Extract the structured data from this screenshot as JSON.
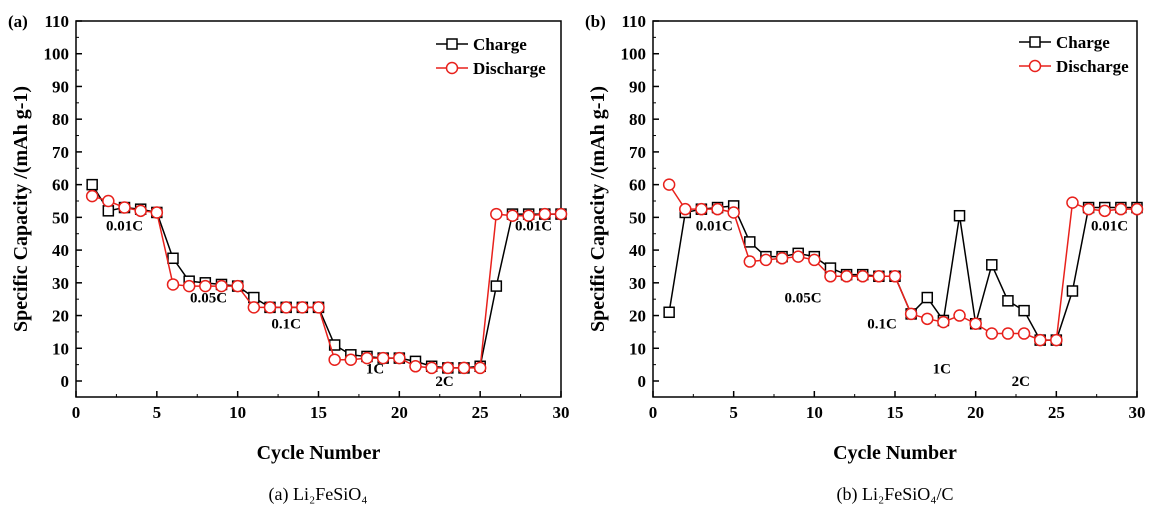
{
  "chart_data": [
    {
      "type": "line",
      "panel_label": "(a)",
      "caption": "(a) Li₂FeSiO₄",
      "xlabel": "Cycle Number",
      "ylabel": "Specific Capacity /(mAh g-1)",
      "xlim": [
        0,
        30
      ],
      "ylim": [
        0,
        110
      ],
      "xticks": [
        0,
        5,
        10,
        15,
        20,
        25,
        30
      ],
      "yticks": [
        0,
        10,
        20,
        30,
        40,
        50,
        60,
        70,
        80,
        90,
        100,
        110
      ],
      "legend_position": "top-right",
      "x": [
        1,
        2,
        3,
        4,
        5,
        6,
        7,
        8,
        9,
        10,
        11,
        12,
        13,
        14,
        15,
        16,
        17,
        18,
        19,
        20,
        21,
        22,
        23,
        24,
        25,
        26,
        27,
        28,
        29,
        30
      ],
      "series": [
        {
          "name": "Charge",
          "color": "#000000",
          "marker": "square",
          "values": [
            60,
            52,
            53,
            52.5,
            51.5,
            37.5,
            30.5,
            30,
            29.5,
            29,
            25.5,
            22.5,
            22.5,
            22.5,
            22.5,
            11,
            8,
            7.5,
            7,
            7,
            6,
            4.5,
            4,
            4,
            4.5,
            29,
            51,
            51,
            51,
            51
          ]
        },
        {
          "name": "Discharge",
          "color": "#e8211c",
          "marker": "circle",
          "values": [
            56.5,
            55,
            53,
            52,
            51.5,
            29.5,
            29,
            29,
            29,
            29,
            22.5,
            22.5,
            22.5,
            22.5,
            22.5,
            6.5,
            6.5,
            7,
            7,
            7,
            4.5,
            4,
            4,
            4,
            4,
            51,
            50.5,
            50.5,
            51,
            51
          ]
        }
      ],
      "annotations": [
        {
          "text": "0.01C",
          "x": 3,
          "y": 46
        },
        {
          "text": "0.05C",
          "x": 8.2,
          "y": 24
        },
        {
          "text": "0.1C",
          "x": 13,
          "y": 16
        },
        {
          "text": "1C",
          "x": 18.5,
          "y": 2.3
        },
        {
          "text": "2C",
          "x": 22.8,
          "y": -1.5
        },
        {
          "text": "0.01C",
          "x": 28.3,
          "y": 46
        }
      ]
    },
    {
      "type": "line",
      "panel_label": "(b)",
      "caption": "(b) Li₂FeSiO₄/C",
      "xlabel": "Cycle Number",
      "ylabel": "Specific Capacity /(mAh g-1)",
      "xlim": [
        0,
        30
      ],
      "ylim": [
        0,
        110
      ],
      "xticks": [
        0,
        5,
        10,
        15,
        20,
        25,
        30
      ],
      "yticks": [
        0,
        10,
        20,
        30,
        40,
        50,
        60,
        70,
        80,
        90,
        100,
        110
      ],
      "legend_position": "top-right",
      "x": [
        1,
        2,
        3,
        4,
        5,
        6,
        7,
        8,
        9,
        10,
        11,
        12,
        13,
        14,
        15,
        16,
        17,
        18,
        19,
        20,
        21,
        22,
        23,
        24,
        25,
        26,
        27,
        28,
        29,
        30
      ],
      "series": [
        {
          "name": "Charge",
          "color": "#000000",
          "marker": "square",
          "values": [
            21,
            51.5,
            52.5,
            53,
            53.5,
            42.5,
            38,
            38,
            39,
            38,
            34.5,
            32.5,
            32.5,
            32,
            32,
            20.5,
            25.5,
            18.5,
            50.5,
            17.5,
            35.5,
            24.5,
            21.5,
            12.5,
            12.5,
            27.5,
            53,
            53,
            53,
            53
          ]
        },
        {
          "name": "Discharge",
          "color": "#e8211c",
          "marker": "circle",
          "values": [
            60,
            52.5,
            52.5,
            52.5,
            51.5,
            36.5,
            37,
            37.5,
            38,
            37,
            32,
            32,
            32,
            32,
            32,
            20.5,
            19,
            18,
            20,
            17.5,
            14.5,
            14.5,
            14.5,
            12.5,
            12.5,
            54.5,
            52.5,
            52,
            52.5,
            52.5
          ]
        }
      ],
      "annotations": [
        {
          "text": "0.01C",
          "x": 3.8,
          "y": 46
        },
        {
          "text": "0.05C",
          "x": 9.3,
          "y": 24
        },
        {
          "text": "0.1C",
          "x": 14.2,
          "y": 16
        },
        {
          "text": "1C",
          "x": 17.9,
          "y": 2.3
        },
        {
          "text": "2C",
          "x": 22.8,
          "y": -1.5
        },
        {
          "text": "0.01C",
          "x": 28.3,
          "y": 46
        }
      ]
    }
  ]
}
